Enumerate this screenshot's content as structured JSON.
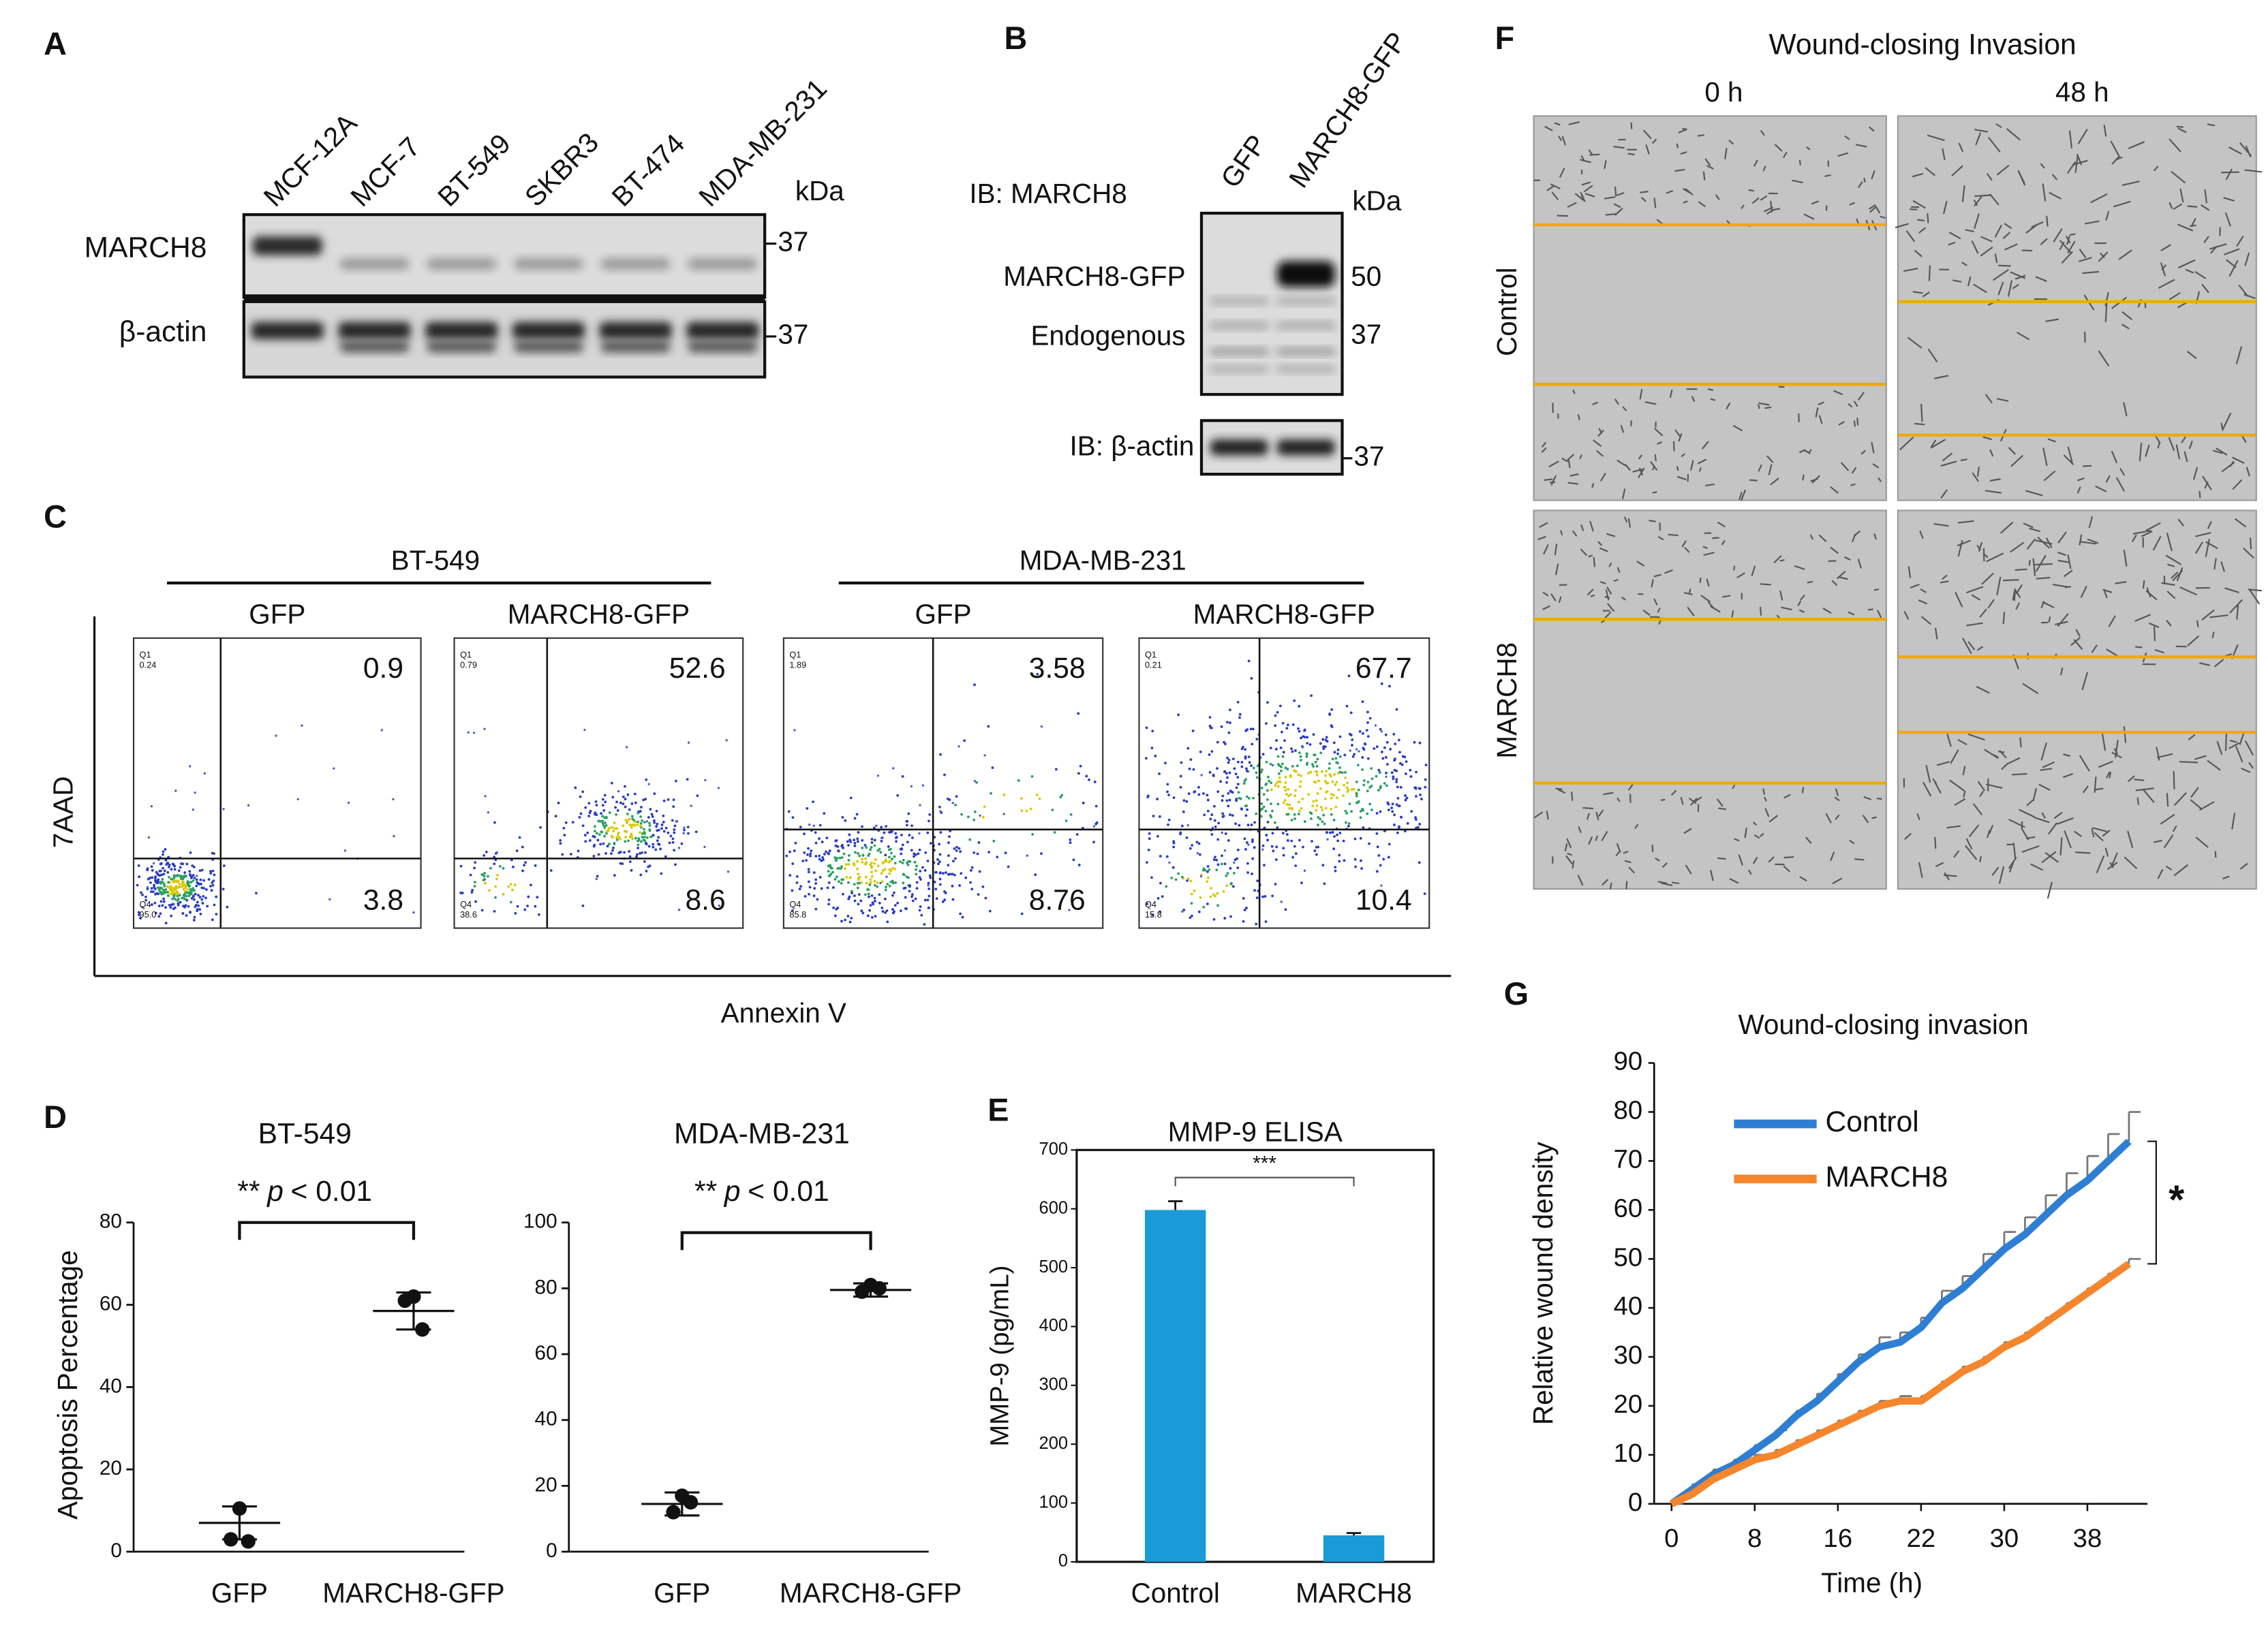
{
  "panels": {
    "A": {
      "label": "A",
      "lanes": [
        "MCF-12A",
        "MCF-7",
        "BT-549",
        "SKBR3",
        "BT-474",
        "MDA-MB-231"
      ],
      "unit": "kDa",
      "rows": [
        "MARCH8",
        "β-actin"
      ],
      "markers": [
        "37",
        "37"
      ]
    },
    "B": {
      "label": "B",
      "lanes": [
        "GFP",
        "MARCH8-GFP"
      ],
      "probe": "IB: MARCH8",
      "unit": "kDa",
      "bands": [
        "MARCH8-GFP",
        "Endogenous"
      ],
      "markers": [
        "50",
        "37"
      ],
      "loading_probe": "IB: β-actin",
      "loading_marker": "37"
    },
    "C": {
      "label": "C",
      "ylabel": "7AAD",
      "xlabel": "Annexin V",
      "quadrant_names": [
        "Q1",
        "Q4"
      ],
      "groups": [
        {
          "name": "BT-549",
          "plots": [
            {
              "name": "GFP",
              "upper_right": 0.9,
              "lower_right": 3.8,
              "q1_small": "0.24",
              "q4_small": "95.0"
            },
            {
              "name": "MARCH8-GFP",
              "upper_right": 52.6,
              "lower_right": 8.6,
              "q1_small": "0.79",
              "q4_small": "38.6"
            }
          ]
        },
        {
          "name": "MDA-MB-231",
          "plots": [
            {
              "name": "GFP",
              "upper_right": 3.58,
              "lower_right": 8.76,
              "q1_small": "1.89",
              "q4_small": "85.8"
            },
            {
              "name": "MARCH8-GFP",
              "upper_right": 67.7,
              "lower_right": 10.4,
              "q1_small": "0.21",
              "q4_small": "15.8"
            }
          ]
        }
      ]
    },
    "D": {
      "label": "D"
    },
    "E": {
      "label": "E"
    },
    "F": {
      "label": "F",
      "title": "Wound-closing Invasion",
      "columns": [
        "0 h",
        "48 h"
      ],
      "rows": [
        "Control",
        "MARCH8"
      ]
    },
    "G": {
      "label": "G"
    }
  },
  "chart_data": [
    {
      "type": "dot",
      "title": "BT-549",
      "annotation": [
        "**",
        "p",
        "< 0.01"
      ],
      "ylabel": "Apoptosis Percentage",
      "categories": [
        "GFP",
        "MARCH8-GFP"
      ],
      "points": [
        [
          10.5,
          3,
          2.5
        ],
        [
          62,
          61,
          54
        ]
      ],
      "means": [
        7,
        58.5
      ],
      "errors": [
        4,
        4.5
      ],
      "ylim": [
        0,
        80
      ],
      "yticks": [
        0,
        20,
        40,
        60,
        80
      ]
    },
    {
      "type": "dot",
      "title": "MDA-MB-231",
      "annotation": [
        "**",
        "p",
        "< 0.01"
      ],
      "categories": [
        "GFP",
        "MARCH8-GFP"
      ],
      "points": [
        [
          17,
          12,
          15
        ],
        [
          81,
          79,
          80
        ]
      ],
      "means": [
        14.5,
        79.5
      ],
      "errors": [
        3.5,
        2
      ],
      "ylim": [
        0,
        100
      ],
      "yticks": [
        0,
        20,
        40,
        60,
        80,
        100
      ]
    },
    {
      "type": "bar",
      "title": "MMP-9 ELISA",
      "ylabel": "MMP-9 (pg/mL)",
      "annotation": "***",
      "color": "#1a9ad6",
      "categories": [
        "Control",
        "MARCH8"
      ],
      "values": [
        598,
        45
      ],
      "errors": [
        15,
        4
      ],
      "ylim": [
        0,
        700
      ],
      "yticks": [
        0,
        100,
        200,
        300,
        400,
        500,
        600,
        700
      ]
    },
    {
      "type": "line",
      "title": "Wound-closing invasion",
      "xlabel": "Time (h)",
      "ylabel": "Relative wound density",
      "annotation": "*",
      "categories": [
        "0",
        null,
        null,
        null,
        "8",
        null,
        null,
        null,
        "16",
        null,
        null,
        null,
        "22",
        null,
        null,
        null,
        "30",
        null,
        null,
        null,
        "38",
        null,
        null
      ],
      "series": [
        {
          "name": "Control",
          "color": "#2e7fd3",
          "values": [
            0,
            3,
            6,
            8,
            11,
            14,
            18,
            21,
            25,
            29,
            32,
            33,
            36,
            41,
            44,
            48,
            52,
            55,
            59,
            63,
            66,
            70,
            74
          ],
          "errors": [
            0,
            1,
            1,
            1,
            1,
            1,
            1,
            1.5,
            1.5,
            1.5,
            2,
            2,
            2,
            2.5,
            2.5,
            3,
            3.5,
            3.5,
            4,
            4.5,
            5,
            5.5,
            6
          ]
        },
        {
          "name": "MARCH8",
          "color": "#f5862e",
          "values": [
            0,
            2,
            5,
            7,
            9,
            10,
            12,
            14,
            16,
            18,
            20,
            21,
            21,
            24,
            27,
            29,
            32,
            34,
            37,
            40,
            43,
            46,
            49
          ],
          "errors": [
            0,
            1,
            1,
            1,
            1,
            1,
            1,
            1,
            1,
            1,
            1,
            1,
            1,
            1,
            1,
            1,
            1,
            1,
            1,
            1,
            1,
            1,
            1
          ]
        }
      ],
      "legend": "upper left",
      "ylim": [
        0,
        90
      ],
      "yticks": [
        0,
        10,
        20,
        30,
        40,
        50,
        60,
        70,
        80,
        90
      ]
    }
  ]
}
